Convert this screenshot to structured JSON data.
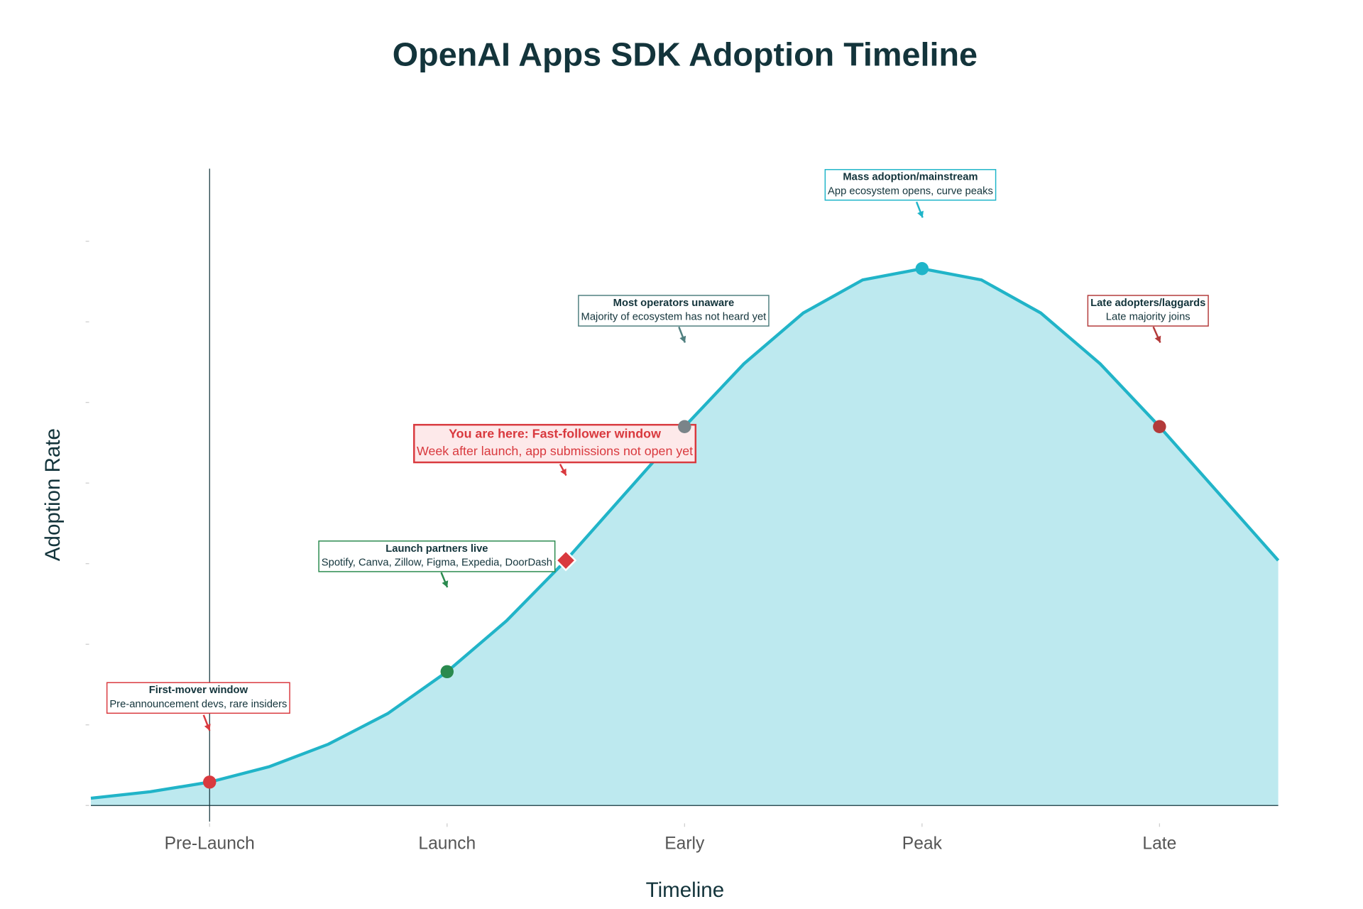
{
  "chart_data": {
    "type": "area",
    "title": "OpenAI Apps SDK Adoption Timeline",
    "x_label": "Timeline",
    "y_label": "Adoption Rate",
    "xlim": [
      -0.5,
      4.5
    ],
    "ylim": [
      -0.2,
      7.9
    ],
    "xticks": [
      {
        "value": 0,
        "label": "Pre-Launch"
      },
      {
        "value": 1,
        "label": "Launch"
      },
      {
        "value": 2,
        "label": "Early"
      },
      {
        "value": 3,
        "label": "Peak"
      },
      {
        "value": 4,
        "label": "Late"
      }
    ],
    "yticks": [
      0,
      1,
      2,
      3,
      4,
      5,
      6,
      7
    ],
    "zeroline": true,
    "series": [
      {
        "color": "#21b4c8",
        "fill": "#bde9ef",
        "x": [
          -0.5,
          -0.25,
          0,
          0.25,
          0.5,
          0.75,
          1,
          1.25,
          1.5,
          1.75,
          2,
          2.25,
          2.5,
          2.75,
          3,
          3.25,
          3.5,
          3.75,
          4,
          4.25,
          4.5
        ],
        "values": [
          0.09,
          0.17,
          0.29,
          0.48,
          0.76,
          1.14,
          1.66,
          2.29,
          3.04,
          3.87,
          4.7,
          5.48,
          6.11,
          6.52,
          6.66,
          6.52,
          6.11,
          5.48,
          4.7,
          3.87,
          3.04
        ]
      }
    ],
    "markers": [
      {
        "x": 0,
        "y": 0.29,
        "color": "#d9393e",
        "symbol": "circle",
        "label": {
          "title": "First-mover window",
          "text": "Pre-announcement devs, rare insiders"
        }
      },
      {
        "x": 1,
        "y": 1.66,
        "color": "#2a8a4e",
        "symbol": "circle",
        "label": {
          "title": "Launch partners live",
          "text": "Spotify, Canva, Zillow, Figma, Expedia, DoorDash"
        }
      },
      {
        "x": 1.5,
        "y": 3.04,
        "color": "#d9393e",
        "symbol": "diamond",
        "label": {
          "title": "You are here: Fast-follower window",
          "text": "Week after launch, app submissions not open yet",
          "bgcolor": "#fde9ea"
        }
      },
      {
        "x": 2,
        "y": 4.7,
        "color": "#7a8489",
        "border": "#4f7f7f",
        "symbol": "circle",
        "label": {
          "title": "Most operators unaware",
          "text": "Majority of ecosystem has not heard yet"
        }
      },
      {
        "x": 3,
        "y": 6.66,
        "color": "#1fb5c9",
        "symbol": "circle",
        "label": {
          "title": "Mass adoption/mainstream",
          "text": "App ecosystem opens, curve peaks"
        }
      },
      {
        "x": 4,
        "y": 4.7,
        "color": "#b33a3a",
        "symbol": "circle",
        "label": {
          "title": "Late adopters/laggards",
          "text": "Late majority joins"
        }
      }
    ]
  }
}
